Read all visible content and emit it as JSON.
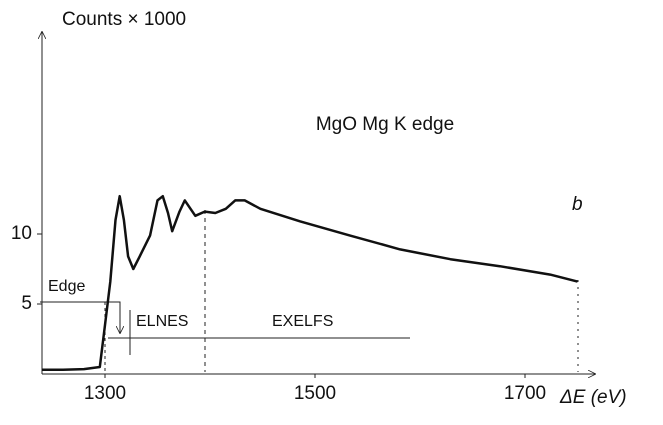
{
  "chart_data": {
    "type": "line",
    "title": "MgO   Mg K edge",
    "panel_label": "b",
    "ylabel": "Counts × 1000",
    "xlabel": "ΔE (eV)",
    "annotations": [
      "Edge",
      "ELNES",
      "EXELFS"
    ],
    "x": [
      1240,
      1260,
      1280,
      1295,
      1300,
      1305,
      1310,
      1314,
      1318,
      1322,
      1327,
      1333,
      1343,
      1350,
      1355,
      1360,
      1364,
      1371,
      1376,
      1386,
      1395,
      1405,
      1415,
      1424,
      1433,
      1448,
      1486,
      1533,
      1581,
      1629,
      1676,
      1724,
      1750
    ],
    "series": [
      {
        "name": "MgO",
        "color": "#111111",
        "values": [
          0.3,
          0.3,
          0.35,
          0.5,
          3.5,
          6.6,
          11,
          12.7,
          11,
          8.4,
          7.5,
          8.4,
          9.9,
          12.4,
          12.7,
          11.5,
          10.2,
          11.6,
          12.4,
          11.3,
          11.6,
          11.5,
          11.8,
          12.4,
          12.4,
          11.8,
          10.9,
          9.9,
          8.9,
          8.2,
          7.7,
          7.1,
          6.6
        ]
      }
    ],
    "xlim": [
      1240,
      1760
    ],
    "ylim": [
      0,
      24
    ],
    "xticks": [
      1300,
      1500,
      1700
    ],
    "yticks": [
      5,
      10
    ],
    "grid": false
  }
}
